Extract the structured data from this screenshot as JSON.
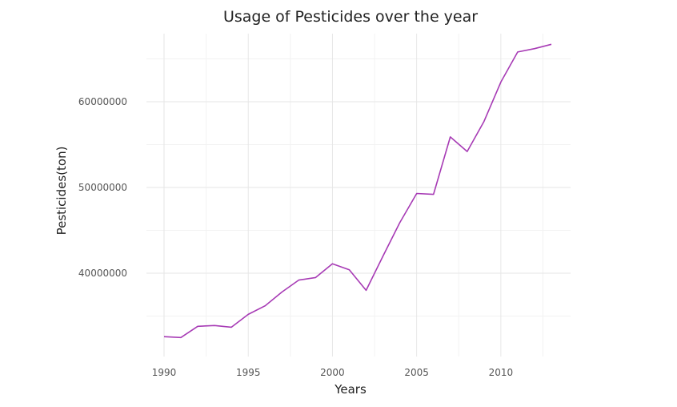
{
  "chart_data": {
    "type": "line",
    "title": "Usage of Pesticides over the year",
    "xlabel": "Years",
    "ylabel": "Pesticides(ton)",
    "xlim": [
      1990,
      2013
    ],
    "ylim": [
      31000000,
      68000000
    ],
    "x_ticks": [
      1990,
      1995,
      2000,
      2005,
      2010
    ],
    "x_tick_labels": [
      "1990",
      "1995",
      "2000",
      "2005",
      "2010"
    ],
    "y_ticks": [
      40000000,
      50000000,
      60000000
    ],
    "y_tick_labels": [
      "40000000",
      "50000000",
      "60000000"
    ],
    "grid": true,
    "legend": "none",
    "line_color": "#a73bb5",
    "x": [
      1990,
      1991,
      1992,
      1993,
      1994,
      1995,
      1996,
      1997,
      1998,
      1999,
      2000,
      2001,
      2002,
      2003,
      2004,
      2005,
      2006,
      2007,
      2008,
      2009,
      2010,
      2011,
      2012,
      2013
    ],
    "values": [
      32600000,
      32500000,
      33800000,
      33900000,
      33700000,
      35200000,
      36200000,
      37800000,
      39200000,
      39500000,
      41100000,
      40400000,
      38000000,
      42000000,
      45900000,
      49300000,
      49200000,
      55900000,
      54200000,
      57700000,
      62300000,
      65800000,
      66200000,
      66700000
    ]
  }
}
